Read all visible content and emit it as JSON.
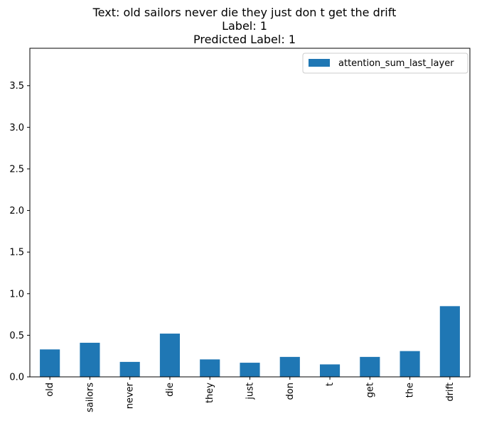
{
  "chart_data": {
    "type": "bar",
    "title_lines": [
      "Text: old sailors never die they just don t get the drift",
      "Label: 1",
      "Predicted Label: 1"
    ],
    "categories": [
      "old",
      "sailors",
      "never",
      "die",
      "they",
      "just",
      "don",
      "t",
      "get",
      "the",
      "drift"
    ],
    "series": [
      {
        "name": "attention_sum_last_layer",
        "color": "#1f77b4",
        "values": [
          0.33,
          0.41,
          0.18,
          0.52,
          0.21,
          0.17,
          0.24,
          0.15,
          0.24,
          0.31,
          0.85
        ]
      }
    ],
    "y_ticks": [
      "0.0",
      "0.5",
      "1.0",
      "1.5",
      "2.0",
      "2.5",
      "3.0",
      "3.5"
    ],
    "ylim": [
      0,
      3.95
    ],
    "grid": false,
    "legend_position": "top-right"
  }
}
